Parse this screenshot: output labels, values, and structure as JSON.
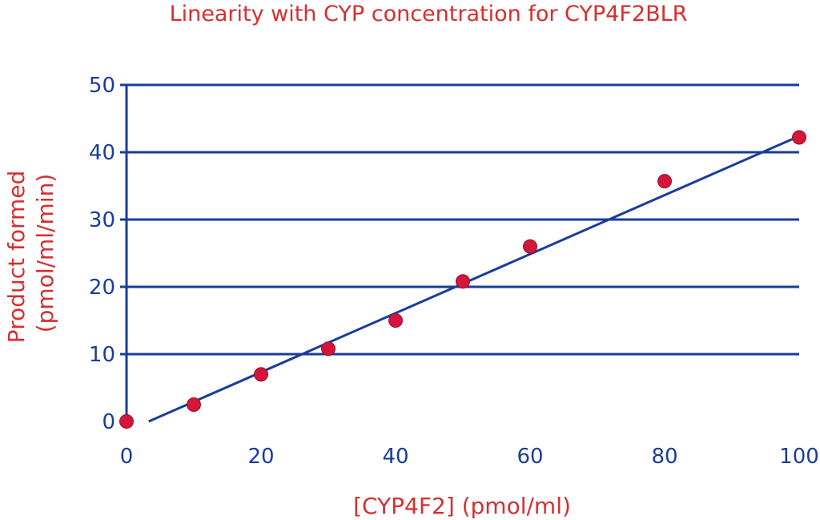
{
  "chart_data": {
    "type": "scatter",
    "title": "Linearity with CYP concentration for CYP4F2BLR",
    "xlabel": "[CYP4F2] (pmol/ml)",
    "ylabel_lines": [
      "Product formed",
      "(pmol/ml/min)"
    ],
    "xlim": [
      0,
      100
    ],
    "ylim": [
      0,
      50
    ],
    "x_ticks": [
      0,
      20,
      40,
      60,
      80,
      100
    ],
    "y_ticks": [
      0,
      10,
      20,
      30,
      40,
      50
    ],
    "grid": "horizontal",
    "series": [
      {
        "points": [
          {
            "x": 0,
            "y": 0
          },
          {
            "x": 10,
            "y": 2.5
          },
          {
            "x": 20,
            "y": 7
          },
          {
            "x": 30,
            "y": 10.8
          },
          {
            "x": 40,
            "y": 15
          },
          {
            "x": 50,
            "y": 20.8
          },
          {
            "x": 60,
            "y": 26
          },
          {
            "x": 80,
            "y": 35.7
          },
          {
            "x": 100,
            "y": 42.2
          }
        ]
      }
    ],
    "trendline": {
      "type": "linear",
      "from": {
        "x": 3.3,
        "y": 0
      },
      "to": {
        "x": 100,
        "y": 42.4
      }
    },
    "colors": {
      "text": "#d62f2f",
      "axis": "#1a3d9a",
      "point": "#d3163a"
    }
  }
}
